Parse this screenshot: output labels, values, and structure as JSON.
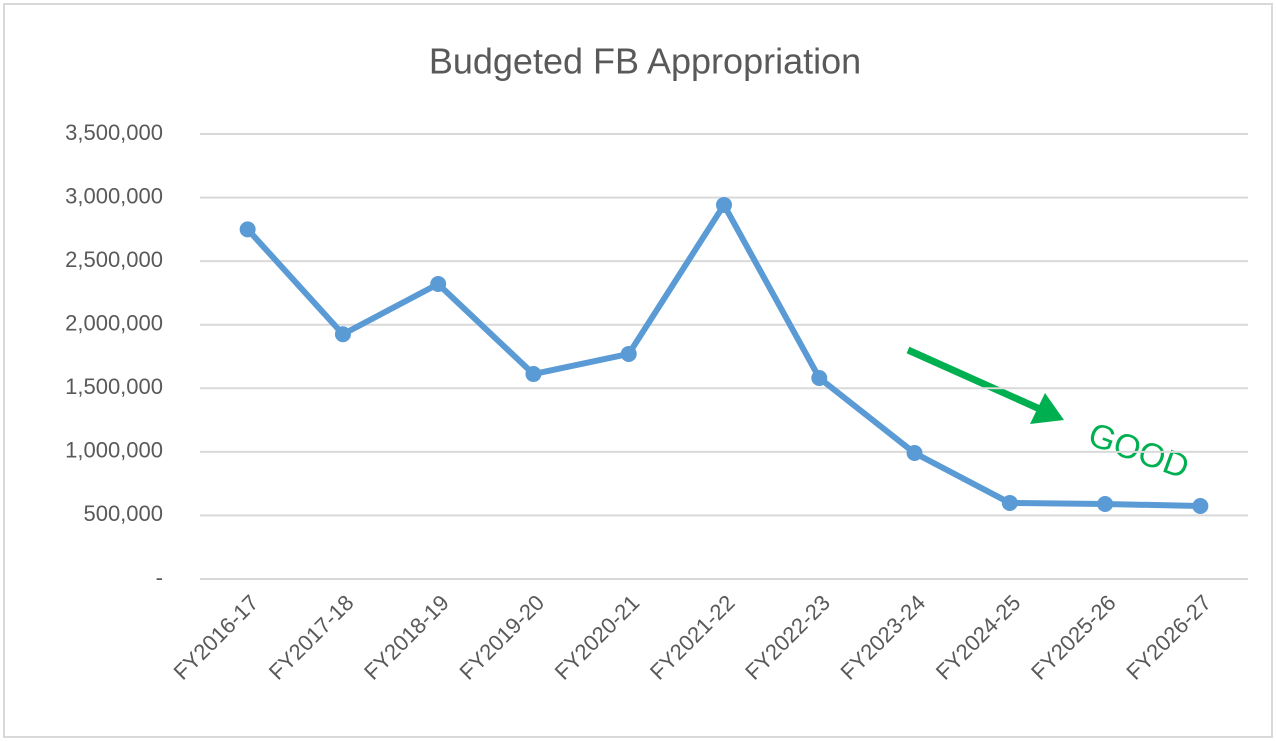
{
  "chart_data": {
    "type": "line",
    "title": "Budgeted FB Appropriation",
    "categories": [
      "FY2016-17",
      "FY2017-18",
      "FY2018-19",
      "FY2019-20",
      "FY2020-21",
      "FY2021-22",
      "FY2022-23",
      "FY2023-24",
      "FY2024-25",
      "FY2025-26",
      "FY2026-27"
    ],
    "series": [
      {
        "color": "#5b9bd5",
        "values": [
          2750000,
          1925000,
          2320000,
          1612000,
          1770000,
          2942000,
          1581000,
          991000,
          598000,
          590000,
          574000
        ]
      }
    ],
    "ylim": [
      0,
      3500000
    ],
    "yticks": [
      {
        "value": 0,
        "label": "-"
      },
      {
        "value": 500000,
        "label": "500,000"
      },
      {
        "value": 1000000,
        "label": "1,000,000"
      },
      {
        "value": 1500000,
        "label": "1,500,000"
      },
      {
        "value": 2000000,
        "label": "2,000,000"
      },
      {
        "value": 2500000,
        "label": "2,500,000"
      },
      {
        "value": 3000000,
        "label": "3,000,000"
      },
      {
        "value": 3500000,
        "label": "3,500,000"
      }
    ],
    "grid": true,
    "annotation": {
      "text": "GOOD",
      "color": "#00b050"
    }
  }
}
